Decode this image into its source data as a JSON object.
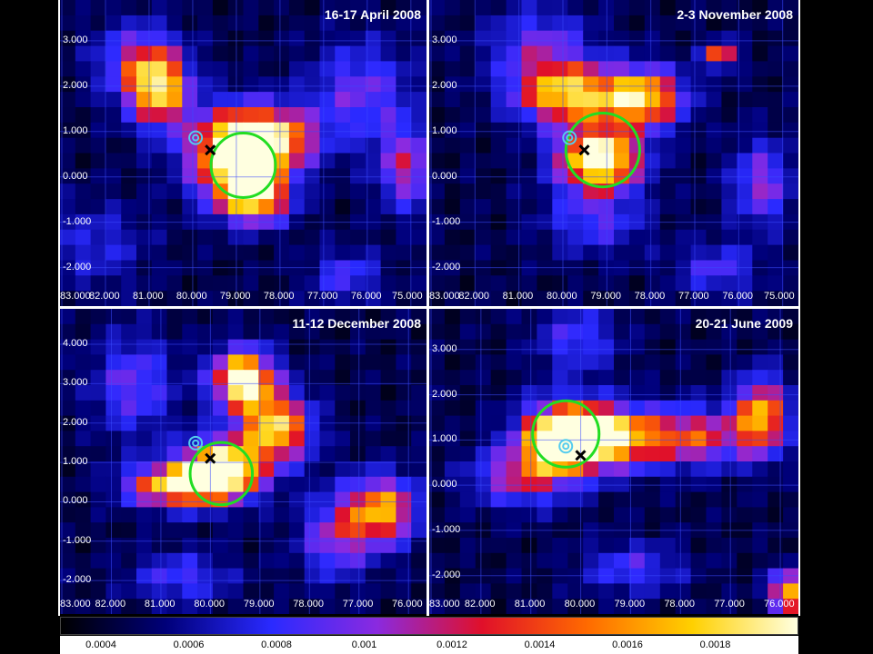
{
  "panels": [
    {
      "title": "16-17 April 2008",
      "y_ticks": [
        "3.000",
        "2.000",
        "1.000",
        "0.000",
        "-1.000",
        "-2.000"
      ],
      "x_ticks": [
        "83.000",
        "82.000",
        "81.000",
        "80.000",
        "79.000",
        "78.000",
        "77.000",
        "76.000",
        "75.000"
      ]
    },
    {
      "title": "2-3 November 2008",
      "y_ticks": [
        "3.000",
        "2.000",
        "1.000",
        "0.000",
        "-1.000",
        "-2.000"
      ],
      "x_ticks": [
        "83.000",
        "82.000",
        "81.000",
        "80.000",
        "79.000",
        "78.000",
        "77.000",
        "76.000",
        "75.000"
      ]
    },
    {
      "title": "11-12 December 2008",
      "y_ticks": [
        "4.000",
        "3.000",
        "2.000",
        "1.000",
        "0.000",
        "-1.000",
        "-2.000"
      ],
      "x_ticks": [
        "83.000",
        "82.000",
        "81.000",
        "80.000",
        "79.000",
        "78.000",
        "77.000",
        "76.000"
      ]
    },
    {
      "title": "20-21 June 2009",
      "y_ticks": [
        "3.000",
        "2.000",
        "1.000",
        "0.000",
        "-1.000",
        "-2.000"
      ],
      "x_ticks": [
        "83.000",
        "82.000",
        "81.000",
        "80.000",
        "79.000",
        "78.000",
        "77.000",
        "76.000"
      ]
    }
  ],
  "colorbar": {
    "labels": [
      "0.0004",
      "0.0006",
      "0.0008",
      "0.001",
      "0.0012",
      "0.0014",
      "0.0016",
      "0.0018"
    ],
    "colors": [
      "#000000",
      "#00007a",
      "#2a2aff",
      "#8a2ae0",
      "#e0102a",
      "#ff6a00",
      "#ffd000",
      "#ffffe0"
    ]
  },
  "markers": {
    "circle_color": "#22dd22",
    "target_color": "#55ccee",
    "cross_color": "#000000"
  }
}
